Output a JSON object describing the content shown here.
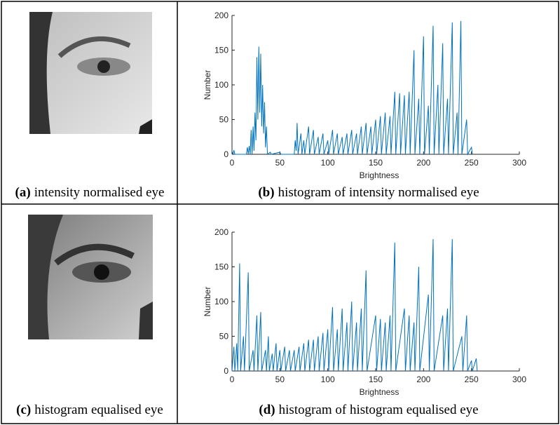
{
  "captions": [
    {
      "label": "(a)",
      "text": "intensity normalised eye"
    },
    {
      "label": "(b)",
      "text": "histogram of intensity normalised eye"
    },
    {
      "label": "(c)",
      "text": "histogram equalised eye"
    },
    {
      "label": "(d)",
      "text": "histogram of histogram equalised eye"
    }
  ],
  "chart_data": [
    {
      "type": "line",
      "xlabel": "Brightness",
      "ylabel": "Number",
      "color": "#0072bd",
      "xlim": [
        0,
        300
      ],
      "ylim": [
        0,
        200
      ],
      "xticks": [
        0,
        50,
        100,
        150,
        200,
        250,
        300
      ],
      "yticks": [
        0,
        50,
        100,
        150,
        200
      ],
      "x": [
        0,
        1,
        2,
        3,
        15,
        16,
        17,
        18,
        19,
        20,
        21,
        22,
        23,
        24,
        25,
        26,
        27,
        28,
        29,
        30,
        31,
        32,
        33,
        34,
        35,
        36,
        37,
        40,
        41,
        50,
        51,
        65,
        66,
        67,
        68,
        69,
        72,
        73,
        75,
        76,
        80,
        81,
        85,
        86,
        90,
        91,
        95,
        96,
        100,
        101,
        105,
        106,
        110,
        111,
        115,
        116,
        120,
        121,
        125,
        126,
        130,
        131,
        135,
        136,
        140,
        141,
        145,
        146,
        150,
        151,
        155,
        156,
        160,
        161,
        165,
        166,
        170,
        171,
        175,
        176,
        180,
        181,
        185,
        186,
        190,
        191,
        195,
        196,
        200,
        201,
        205,
        206,
        210,
        211,
        215,
        216,
        220,
        221,
        225,
        226,
        230,
        231,
        235,
        236,
        239,
        240,
        245,
        246,
        250,
        251
      ],
      "values": [
        5,
        0,
        6,
        0,
        0,
        10,
        0,
        12,
        0,
        35,
        0,
        40,
        5,
        60,
        20,
        140,
        50,
        155,
        60,
        145,
        40,
        100,
        30,
        75,
        10,
        40,
        0,
        3,
        0,
        3,
        0,
        0,
        20,
        5,
        45,
        0,
        30,
        0,
        20,
        0,
        40,
        0,
        35,
        0,
        25,
        0,
        30,
        0,
        20,
        0,
        35,
        0,
        30,
        0,
        25,
        0,
        30,
        0,
        35,
        0,
        30,
        0,
        40,
        0,
        45,
        0,
        40,
        0,
        50,
        0,
        55,
        0,
        60,
        0,
        55,
        0,
        90,
        0,
        88,
        0,
        85,
        0,
        90,
        0,
        150,
        0,
        80,
        0,
        170,
        0,
        70,
        0,
        185,
        0,
        100,
        0,
        160,
        0,
        80,
        0,
        190,
        0,
        60,
        0,
        192,
        0,
        50,
        0,
        10,
        0
      ]
    },
    {
      "type": "line",
      "xlabel": "Brightness",
      "ylabel": "Number",
      "color": "#0072bd",
      "xlim": [
        0,
        300
      ],
      "ylim": [
        0,
        200
      ],
      "xticks": [
        0,
        50,
        100,
        150,
        200,
        250,
        300
      ],
      "yticks": [
        0,
        50,
        100,
        150,
        200
      ],
      "x": [
        0,
        2,
        3,
        5,
        6,
        8,
        9,
        12,
        13,
        17,
        18,
        22,
        23,
        26,
        27,
        30,
        31,
        35,
        36,
        38,
        39,
        42,
        43,
        46,
        47,
        50,
        51,
        55,
        56,
        60,
        61,
        65,
        66,
        70,
        71,
        75,
        76,
        80,
        81,
        85,
        86,
        90,
        91,
        95,
        96,
        100,
        101,
        105,
        106,
        110,
        111,
        115,
        116,
        120,
        121,
        125,
        126,
        130,
        131,
        135,
        136,
        140,
        141,
        150,
        151,
        155,
        156,
        160,
        161,
        165,
        166,
        170,
        171,
        180,
        181,
        185,
        186,
        190,
        191,
        195,
        196,
        205,
        206,
        210,
        211,
        220,
        221,
        225,
        226,
        230,
        231,
        240,
        241,
        245,
        246,
        250,
        251,
        255,
        256
      ],
      "values": [
        0,
        35,
        0,
        40,
        0,
        155,
        0,
        50,
        0,
        142,
        0,
        30,
        0,
        80,
        0,
        85,
        0,
        30,
        0,
        50,
        0,
        25,
        0,
        40,
        0,
        30,
        0,
        35,
        0,
        30,
        0,
        30,
        0,
        35,
        0,
        40,
        0,
        45,
        0,
        45,
        0,
        50,
        0,
        55,
        0,
        60,
        0,
        92,
        0,
        60,
        0,
        90,
        0,
        70,
        0,
        100,
        0,
        70,
        0,
        90,
        0,
        145,
        0,
        80,
        0,
        75,
        0,
        70,
        0,
        80,
        0,
        185,
        0,
        90,
        0,
        80,
        0,
        70,
        0,
        150,
        0,
        110,
        0,
        190,
        0,
        80,
        0,
        90,
        0,
        190,
        0,
        50,
        0,
        80,
        0,
        15,
        0,
        18,
        0
      ]
    }
  ]
}
